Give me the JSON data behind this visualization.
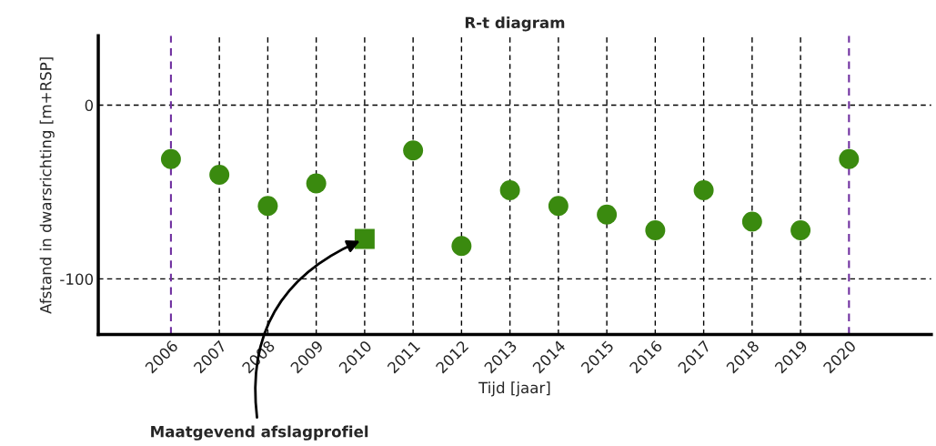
{
  "chart_data": {
    "type": "scatter",
    "title": "R-t diagram",
    "xlabel": "Tijd [jaar]",
    "ylabel": "Afstand in dwarsrichting [m+RSP]",
    "xlim": [
      2004.5,
      2021.7
    ],
    "xticks": [
      2006,
      2007,
      2008,
      2009,
      2010,
      2011,
      2012,
      2013,
      2014,
      2015,
      2016,
      2017,
      2018,
      2019,
      2020
    ],
    "ylim": [
      -132,
      40
    ],
    "yticks": [
      -100,
      0
    ],
    "grid": "y",
    "line_style": "dashed",
    "series": [
      {
        "color": "#3a8a0f",
        "marker": "circle",
        "x": [
          2006,
          2007,
          2008,
          2009,
          2011,
          2012,
          2013,
          2014,
          2015,
          2016,
          2017,
          2018,
          2019,
          2020
        ],
        "values": [
          -31,
          -40,
          -58,
          -45,
          -26,
          -81,
          -49,
          -58,
          -63,
          -72,
          -49,
          -67,
          -72,
          -31
        ]
      },
      {
        "color": "#3a8a0f",
        "marker": "square",
        "x": [
          2010
        ],
        "values": [
          -77
        ]
      }
    ],
    "ref_lines": [
      {
        "axis": "x",
        "value": 2006,
        "color": "#7030a0",
        "line_style": "dashed"
      },
      {
        "axis": "x",
        "value": 2007,
        "color": "#000000",
        "line_style": "dashed"
      },
      {
        "axis": "x",
        "value": 2008,
        "color": "#000000",
        "line_style": "dashed"
      },
      {
        "axis": "x",
        "value": 2009,
        "color": "#000000",
        "line_style": "dashed"
      },
      {
        "axis": "x",
        "value": 2010,
        "color": "#000000",
        "line_style": "dashed"
      },
      {
        "axis": "x",
        "value": 2011,
        "color": "#000000",
        "line_style": "dashed"
      },
      {
        "axis": "x",
        "value": 2012,
        "color": "#000000",
        "line_style": "dashed"
      },
      {
        "axis": "x",
        "value": 2013,
        "color": "#000000",
        "line_style": "dashed"
      },
      {
        "axis": "x",
        "value": 2014,
        "color": "#000000",
        "line_style": "dashed"
      },
      {
        "axis": "x",
        "value": 2015,
        "color": "#000000",
        "line_style": "dashed"
      },
      {
        "axis": "x",
        "value": 2016,
        "color": "#000000",
        "line_style": "dashed"
      },
      {
        "axis": "x",
        "value": 2017,
        "color": "#000000",
        "line_style": "dashed"
      },
      {
        "axis": "x",
        "value": 2018,
        "color": "#000000",
        "line_style": "dashed"
      },
      {
        "axis": "x",
        "value": 2019,
        "color": "#000000",
        "line_style": "dashed"
      },
      {
        "axis": "x",
        "value": 2020,
        "color": "#7030a0",
        "line_style": "dashed"
      }
    ],
    "annotations": [
      {
        "text": "Maatgevend afslagprofiel",
        "x": 2010,
        "y": -77
      }
    ]
  }
}
